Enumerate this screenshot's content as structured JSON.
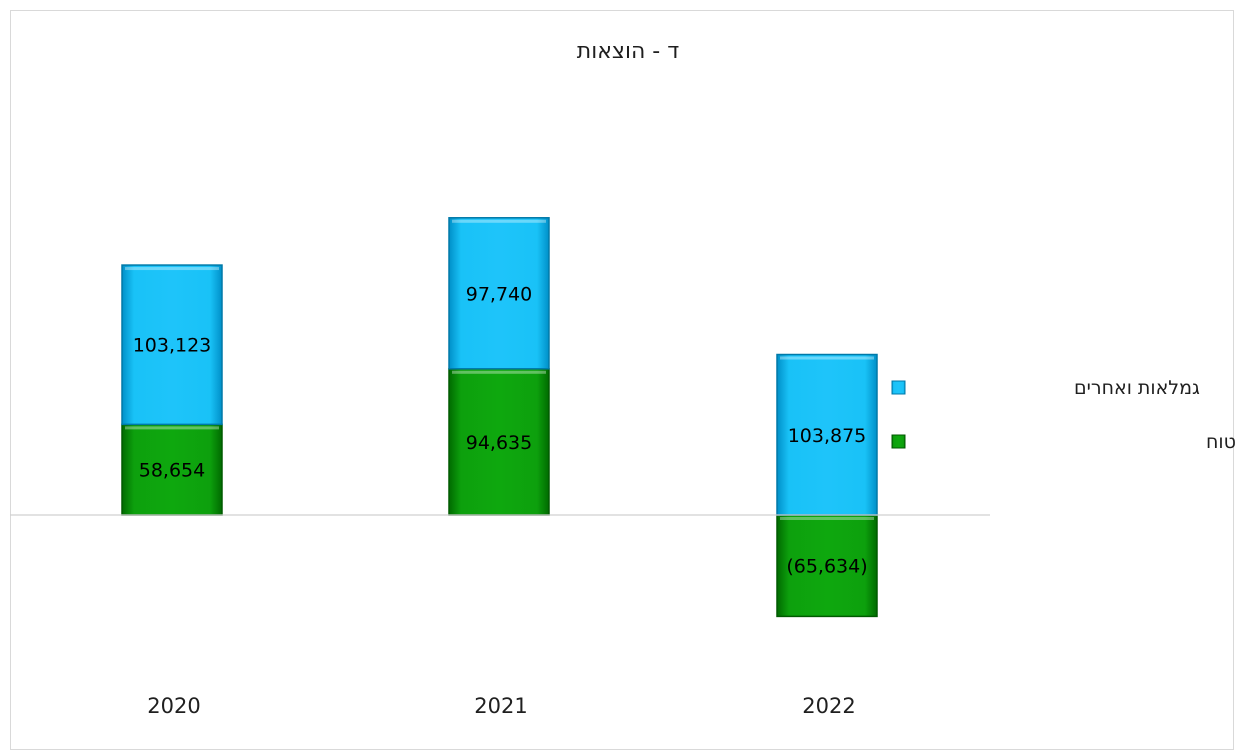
{
  "chart_data": {
    "type": "bar",
    "stacked": true,
    "title": "ד - הוצאות",
    "categories": [
      "2020",
      "2021",
      "2022"
    ],
    "series": [
      {
        "name": "גידול (קיטון) בקרנות הביטוח",
        "values": [
          58654,
          94635,
          -65634
        ],
        "labels": [
          "58,654",
          "94,635",
          "(65,634)"
        ],
        "color": "#0a9a0a"
      },
      {
        "name": "גמלאות ואחרים",
        "values": [
          103123,
          97740,
          103875
        ],
        "labels": [
          "103,123",
          "97,740",
          "103,875"
        ],
        "color": "#00b4ef"
      }
    ],
    "legend": {
      "position": "right"
    },
    "grid": false,
    "ylim": [
      -125000,
      200000
    ]
  }
}
